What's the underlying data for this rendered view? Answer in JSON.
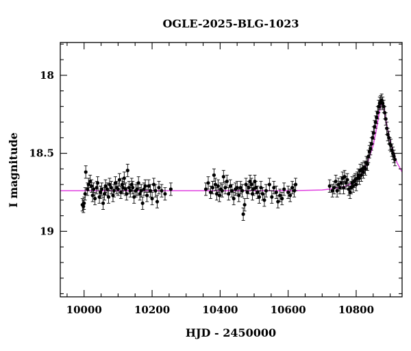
{
  "chart_data": {
    "type": "scatter",
    "title": "OGLE-2025-BLG-1023",
    "xlabel": "HJD - 2450000",
    "ylabel": "I magnitude",
    "xlim": [
      9930,
      10935
    ],
    "ylim": [
      19.42,
      17.79
    ],
    "y_inverted": true,
    "xticks": [
      "10000",
      "10200",
      "10400",
      "10600",
      "10800"
    ],
    "yticks": [
      "18",
      "18.5",
      "19"
    ],
    "grid": false,
    "colors": {
      "data": "#000000",
      "model": "#e040e0",
      "frame": "#000000"
    },
    "model": {
      "name": "",
      "t0": 10875,
      "baseline_mag": 18.74,
      "peak_mag": 18.17,
      "points": [
        [
          9930,
          18.74
        ],
        [
          10600,
          18.74
        ],
        [
          10700,
          18.735
        ],
        [
          10740,
          18.725
        ],
        [
          10770,
          18.71
        ],
        [
          10790,
          18.69
        ],
        [
          10805,
          18.665
        ],
        [
          10820,
          18.62
        ],
        [
          10835,
          18.55
        ],
        [
          10850,
          18.45
        ],
        [
          10860,
          18.34
        ],
        [
          10868,
          18.24
        ],
        [
          10875,
          18.17
        ],
        [
          10882,
          18.21
        ],
        [
          10890,
          18.32
        ],
        [
          10900,
          18.42
        ],
        [
          10910,
          18.5
        ],
        [
          10920,
          18.56
        ],
        [
          10935,
          18.62
        ]
      ]
    },
    "series": [
      {
        "name": "",
        "points": [
          [
            9995,
            18.83,
            0.04
          ],
          [
            9998,
            18.84,
            0.04
          ],
          [
            10000,
            18.82,
            0.04
          ],
          [
            10003,
            18.76,
            0.04
          ],
          [
            10005,
            18.62,
            0.04
          ],
          [
            10010,
            18.73,
            0.04
          ],
          [
            10013,
            18.7,
            0.04
          ],
          [
            10018,
            18.68,
            0.04
          ],
          [
            10022,
            18.71,
            0.04
          ],
          [
            10025,
            18.77,
            0.04
          ],
          [
            10028,
            18.73,
            0.04
          ],
          [
            10032,
            18.79,
            0.04
          ],
          [
            10037,
            18.72,
            0.04
          ],
          [
            10040,
            18.69,
            0.04
          ],
          [
            10045,
            18.78,
            0.04
          ],
          [
            10048,
            18.75,
            0.04
          ],
          [
            10052,
            18.73,
            0.04
          ],
          [
            10056,
            18.82,
            0.04
          ],
          [
            10060,
            18.76,
            0.04
          ],
          [
            10063,
            18.71,
            0.04
          ],
          [
            10068,
            18.73,
            0.04
          ],
          [
            10072,
            18.78,
            0.04
          ],
          [
            10075,
            18.7,
            0.04
          ],
          [
            10080,
            18.72,
            0.04
          ],
          [
            10085,
            18.77,
            0.04
          ],
          [
            10088,
            18.74,
            0.04
          ],
          [
            10092,
            18.69,
            0.04
          ],
          [
            10096,
            18.72,
            0.04
          ],
          [
            10100,
            18.73,
            0.04
          ],
          [
            10104,
            18.67,
            0.04
          ],
          [
            10108,
            18.75,
            0.04
          ],
          [
            10112,
            18.7,
            0.04
          ],
          [
            10115,
            18.72,
            0.04
          ],
          [
            10118,
            18.66,
            0.04
          ],
          [
            10122,
            18.73,
            0.04
          ],
          [
            10125,
            18.76,
            0.04
          ],
          [
            10128,
            18.61,
            0.04
          ],
          [
            10132,
            18.72,
            0.04
          ],
          [
            10136,
            18.74,
            0.04
          ],
          [
            10140,
            18.7,
            0.04
          ],
          [
            10143,
            18.72,
            0.04
          ],
          [
            10147,
            18.78,
            0.04
          ],
          [
            10152,
            18.74,
            0.04
          ],
          [
            10156,
            18.73,
            0.04
          ],
          [
            10160,
            18.69,
            0.04
          ],
          [
            10164,
            18.76,
            0.04
          ],
          [
            10168,
            18.74,
            0.04
          ],
          [
            10172,
            18.82,
            0.04
          ],
          [
            10176,
            18.73,
            0.04
          ],
          [
            10180,
            18.71,
            0.04
          ],
          [
            10185,
            18.77,
            0.04
          ],
          [
            10190,
            18.71,
            0.04
          ],
          [
            10195,
            18.74,
            0.04
          ],
          [
            10200,
            18.79,
            0.04
          ],
          [
            10205,
            18.7,
            0.04
          ],
          [
            10210,
            18.74,
            0.04
          ],
          [
            10215,
            18.81,
            0.04
          ],
          [
            10220,
            18.72,
            0.04
          ],
          [
            10228,
            18.74,
            0.04
          ],
          [
            10238,
            18.76,
            0.04
          ],
          [
            10255,
            18.73,
            0.04
          ],
          [
            10358,
            18.73,
            0.04
          ],
          [
            10365,
            18.69,
            0.04
          ],
          [
            10372,
            18.75,
            0.04
          ],
          [
            10378,
            18.72,
            0.04
          ],
          [
            10382,
            18.64,
            0.04
          ],
          [
            10386,
            18.7,
            0.04
          ],
          [
            10390,
            18.76,
            0.04
          ],
          [
            10394,
            18.71,
            0.04
          ],
          [
            10398,
            18.77,
            0.04
          ],
          [
            10402,
            18.73,
            0.04
          ],
          [
            10406,
            18.74,
            0.04
          ],
          [
            10410,
            18.65,
            0.04
          ],
          [
            10415,
            18.72,
            0.04
          ],
          [
            10420,
            18.68,
            0.04
          ],
          [
            10425,
            18.76,
            0.04
          ],
          [
            10430,
            18.71,
            0.04
          ],
          [
            10435,
            18.74,
            0.04
          ],
          [
            10440,
            18.79,
            0.04
          ],
          [
            10445,
            18.73,
            0.04
          ],
          [
            10450,
            18.72,
            0.04
          ],
          [
            10455,
            18.77,
            0.04
          ],
          [
            10460,
            18.72,
            0.04
          ],
          [
            10465,
            18.74,
            0.04
          ],
          [
            10468,
            18.89,
            0.04
          ],
          [
            10472,
            18.83,
            0.04
          ],
          [
            10476,
            18.7,
            0.04
          ],
          [
            10480,
            18.75,
            0.04
          ],
          [
            10484,
            18.72,
            0.04
          ],
          [
            10488,
            18.68,
            0.04
          ],
          [
            10492,
            18.7,
            0.04
          ],
          [
            10495,
            18.76,
            0.04
          ],
          [
            10498,
            18.73,
            0.04
          ],
          [
            10502,
            18.68,
            0.04
          ],
          [
            10505,
            18.72,
            0.04
          ],
          [
            10510,
            18.75,
            0.04
          ],
          [
            10515,
            18.78,
            0.04
          ],
          [
            10520,
            18.72,
            0.04
          ],
          [
            10525,
            18.76,
            0.04
          ],
          [
            10530,
            18.8,
            0.04
          ],
          [
            10535,
            18.74,
            0.04
          ],
          [
            10545,
            18.7,
            0.04
          ],
          [
            10552,
            18.78,
            0.04
          ],
          [
            10558,
            18.72,
            0.04
          ],
          [
            10565,
            18.75,
            0.04
          ],
          [
            10570,
            18.81,
            0.04
          ],
          [
            10576,
            18.77,
            0.04
          ],
          [
            10582,
            18.79,
            0.04
          ],
          [
            10588,
            18.73,
            0.04
          ],
          [
            10600,
            18.75,
            0.04
          ],
          [
            10606,
            18.77,
            0.04
          ],
          [
            10612,
            18.72,
            0.04
          ],
          [
            10618,
            18.74,
            0.04
          ],
          [
            10622,
            18.7,
            0.04
          ],
          [
            10722,
            18.71,
            0.04
          ],
          [
            10730,
            18.74,
            0.04
          ],
          [
            10735,
            18.72,
            0.04
          ],
          [
            10740,
            18.68,
            0.04
          ],
          [
            10744,
            18.74,
            0.04
          ],
          [
            10748,
            18.7,
            0.04
          ],
          [
            10752,
            18.72,
            0.04
          ],
          [
            10756,
            18.69,
            0.04
          ],
          [
            10760,
            18.66,
            0.04
          ],
          [
            10763,
            18.72,
            0.04
          ],
          [
            10766,
            18.65,
            0.04
          ],
          [
            10770,
            18.69,
            0.04
          ],
          [
            10774,
            18.67,
            0.04
          ],
          [
            10778,
            18.73,
            0.04
          ],
          [
            10782,
            18.75,
            0.04
          ],
          [
            10785,
            18.72,
            0.04
          ],
          [
            10788,
            18.69,
            0.04
          ],
          [
            10791,
            18.71,
            0.04
          ],
          [
            10794,
            18.68,
            0.04
          ],
          [
            10797,
            18.67,
            0.04
          ],
          [
            10800,
            18.7,
            0.04
          ],
          [
            10803,
            18.66,
            0.04
          ],
          [
            10806,
            18.64,
            0.04
          ],
          [
            10809,
            18.66,
            0.04
          ],
          [
            10812,
            18.61,
            0.04
          ],
          [
            10815,
            18.64,
            0.04
          ],
          [
            10818,
            18.6,
            0.04
          ],
          [
            10821,
            18.62,
            0.04
          ],
          [
            10824,
            18.59,
            0.04
          ],
          [
            10827,
            18.6,
            0.04
          ],
          [
            10830,
            18.56,
            0.04
          ],
          [
            10833,
            18.57,
            0.04
          ],
          [
            10836,
            18.52,
            0.04
          ],
          [
            10839,
            18.49,
            0.04
          ],
          [
            10842,
            18.47,
            0.04
          ],
          [
            10845,
            18.44,
            0.04
          ],
          [
            10848,
            18.4,
            0.04
          ],
          [
            10851,
            18.37,
            0.04
          ],
          [
            10854,
            18.33,
            0.04
          ],
          [
            10857,
            18.3,
            0.04
          ],
          [
            10860,
            18.27,
            0.04
          ],
          [
            10863,
            18.24,
            0.04
          ],
          [
            10866,
            18.2,
            0.04
          ],
          [
            10869,
            18.18,
            0.04
          ],
          [
            10872,
            18.17,
            0.04
          ],
          [
            10875,
            18.16,
            0.04
          ],
          [
            10878,
            18.18,
            0.04
          ],
          [
            10881,
            18.2,
            0.04
          ],
          [
            10884,
            18.24,
            0.04
          ],
          [
            10887,
            18.28,
            0.04
          ],
          [
            10890,
            18.34,
            0.04
          ],
          [
            10893,
            18.38,
            0.04
          ],
          [
            10896,
            18.4,
            0.04
          ],
          [
            10899,
            18.44,
            0.04
          ],
          [
            10902,
            18.45,
            0.04
          ],
          [
            10905,
            18.48,
            0.04
          ],
          [
            10908,
            18.5,
            0.04
          ],
          [
            10911,
            18.52,
            0.04
          ],
          [
            10914,
            18.54,
            0.04
          ]
        ]
      }
    ]
  }
}
